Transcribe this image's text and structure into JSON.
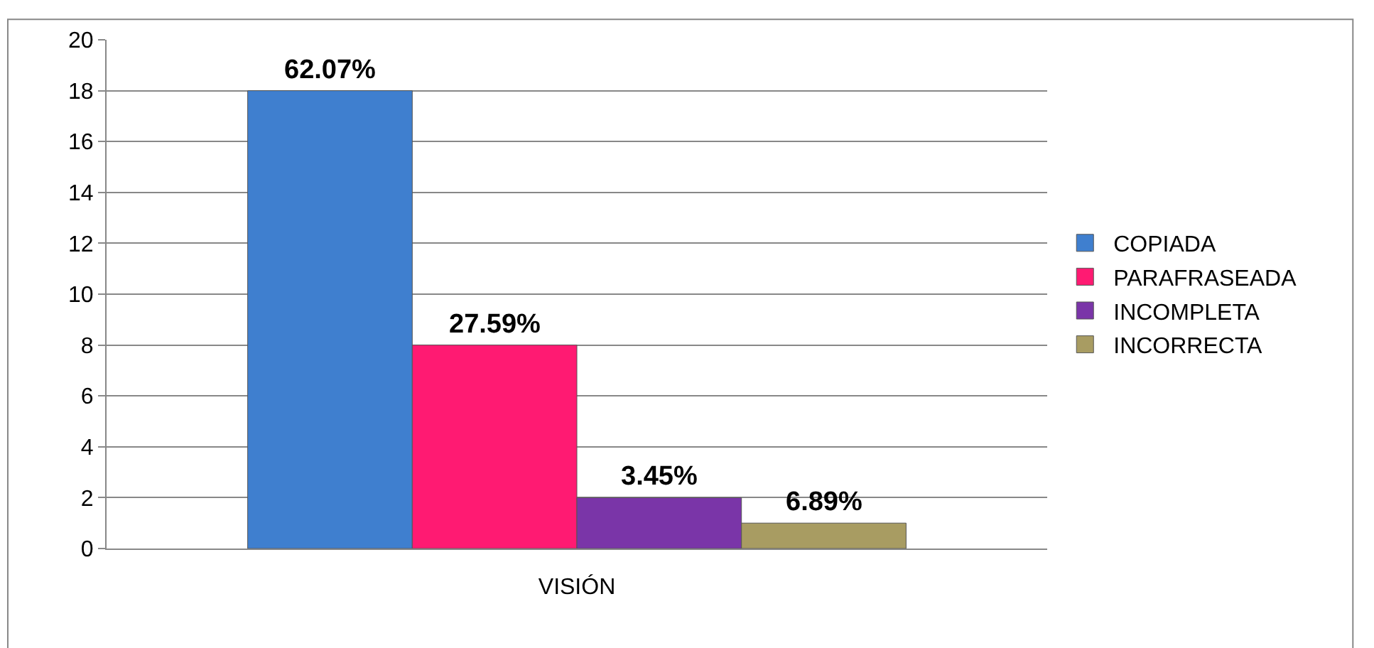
{
  "chart_data": {
    "type": "bar",
    "categories": [
      "VISIÓN"
    ],
    "series": [
      {
        "name": "COPIADA",
        "color": "#3f7fcf",
        "values": [
          18
        ]
      },
      {
        "name": "PARAFRASEADA",
        "color": "#ff1a72",
        "values": [
          8
        ]
      },
      {
        "name": "INCOMPLETA",
        "color": "#7a35a8",
        "values": [
          2
        ]
      },
      {
        "name": "INCORRECTA",
        "color": "#a89c62",
        "values": [
          1
        ]
      }
    ],
    "annotations": [
      "62.07%",
      "27.59%",
      "3.45%",
      "6.89%"
    ],
    "ylim": [
      0,
      20
    ],
    "yticks": [
      0,
      2,
      4,
      6,
      8,
      10,
      12,
      14,
      16,
      18,
      20
    ],
    "grid": "y",
    "legend": "right"
  }
}
